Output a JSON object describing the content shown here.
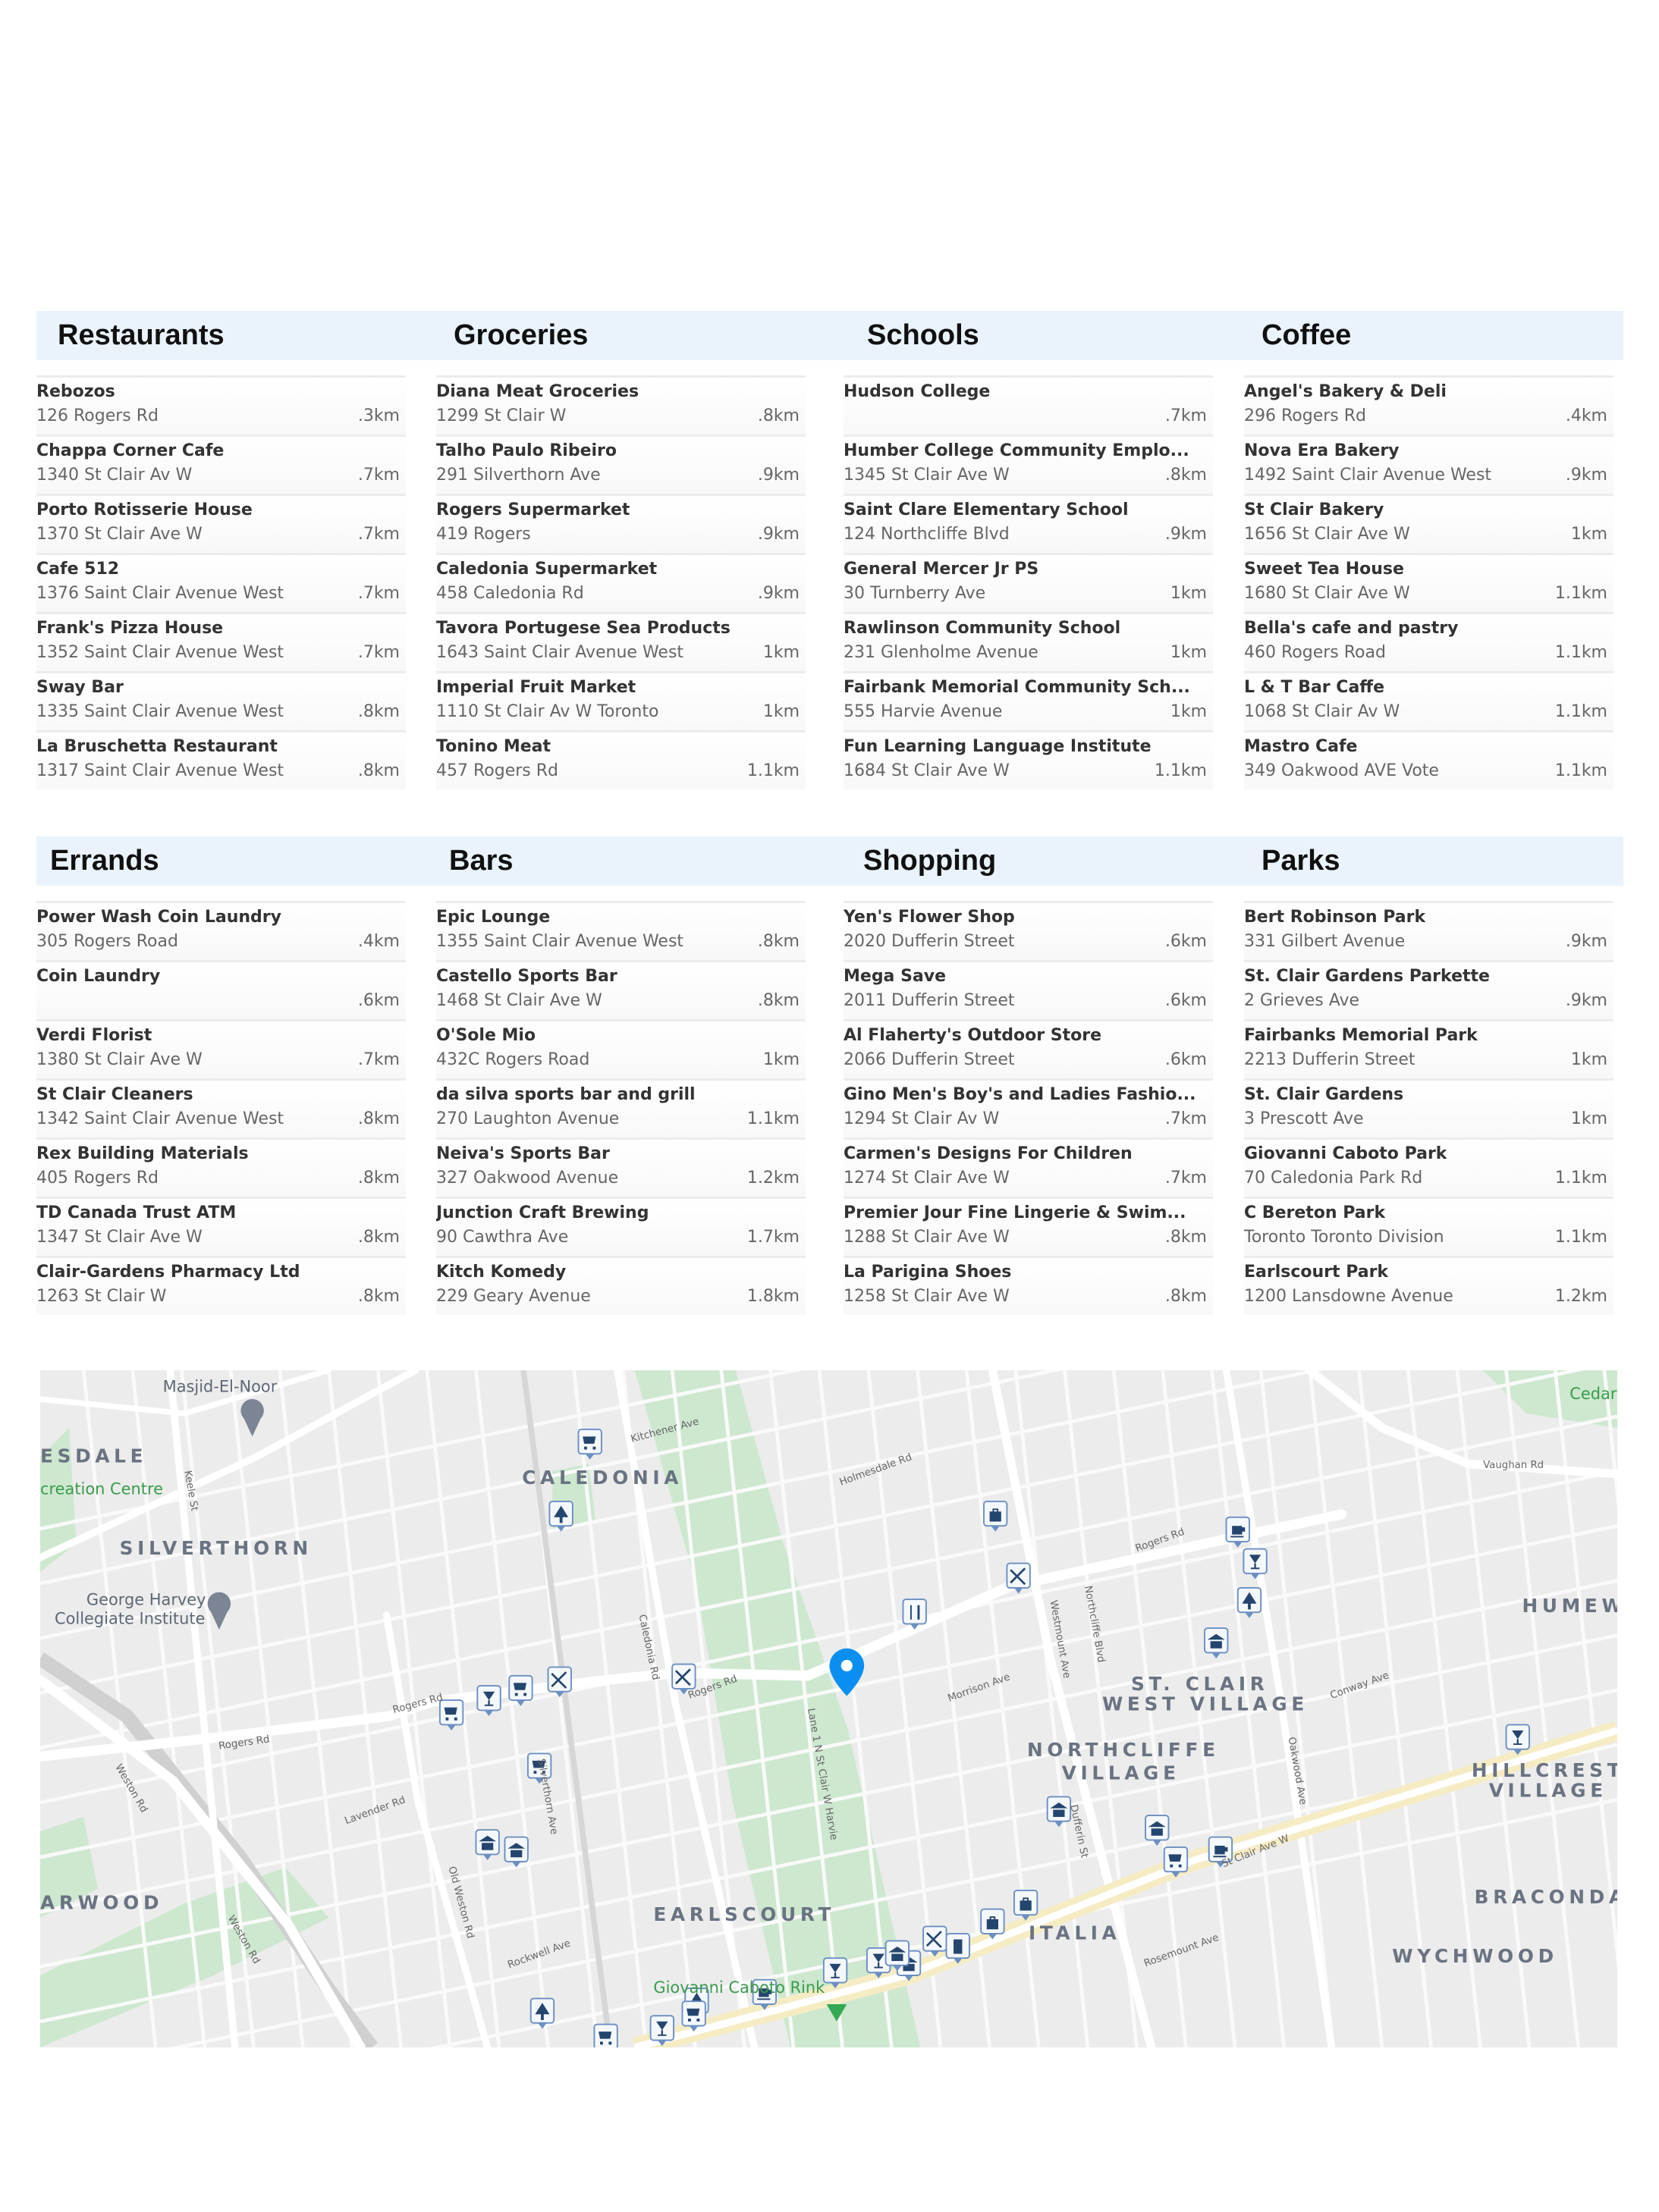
{
  "sections": [
    {
      "categories": [
        {
          "title": "Restaurants",
          "items": [
            {
              "name": "Rebozos",
              "address": "126 Rogers Rd",
              "distance": ".3km"
            },
            {
              "name": "Chappa Corner Cafe",
              "address": "1340 St Clair Av W",
              "distance": ".7km"
            },
            {
              "name": "Porto Rotisserie House",
              "address": "1370 St Clair Ave W",
              "distance": ".7km"
            },
            {
              "name": "Cafe 512",
              "address": "1376 Saint Clair Avenue West",
              "distance": ".7km"
            },
            {
              "name": "Frank's Pizza House",
              "address": "1352 Saint Clair Avenue West",
              "distance": ".7km"
            },
            {
              "name": "Sway Bar",
              "address": "1335 Saint Clair Avenue West",
              "distance": ".8km"
            },
            {
              "name": "La Bruschetta Restaurant",
              "address": "1317 Saint Clair Avenue West",
              "distance": ".8km"
            }
          ]
        },
        {
          "title": "Groceries",
          "items": [
            {
              "name": "Diana Meat Groceries",
              "address": "1299 St Clair W",
              "distance": ".8km"
            },
            {
              "name": "Talho Paulo Ribeiro",
              "address": "291 Silverthorn Ave",
              "distance": ".9km"
            },
            {
              "name": "Rogers Supermarket",
              "address": "419 Rogers",
              "distance": ".9km"
            },
            {
              "name": "Caledonia Supermarket",
              "address": "458 Caledonia Rd",
              "distance": ".9km"
            },
            {
              "name": "Tavora Portugese Sea Products",
              "address": "1643 Saint Clair Avenue West",
              "distance": "1km"
            },
            {
              "name": "Imperial Fruit Market",
              "address": "1110 St Clair Av W Toronto",
              "distance": "1km"
            },
            {
              "name": "Tonino Meat",
              "address": "457 Rogers Rd",
              "distance": "1.1km"
            }
          ]
        },
        {
          "title": "Schools",
          "items": [
            {
              "name": "Hudson College",
              "address": "",
              "distance": ".7km"
            },
            {
              "name": "Humber College Community Emplo...",
              "address": "1345 St Clair Ave W",
              "distance": ".8km"
            },
            {
              "name": "Saint Clare Elementary School",
              "address": "124 Northcliffe Blvd",
              "distance": ".9km"
            },
            {
              "name": "General Mercer Jr PS",
              "address": "30 Turnberry Ave",
              "distance": "1km"
            },
            {
              "name": "Rawlinson Community School",
              "address": "231 Glenholme Avenue",
              "distance": "1km"
            },
            {
              "name": "Fairbank Memorial Community Sch...",
              "address": "555 Harvie Avenue",
              "distance": "1km"
            },
            {
              "name": "Fun Learning Language Institute",
              "address": "1684 St Clair Ave W",
              "distance": "1.1km"
            }
          ]
        },
        {
          "title": "Coffee",
          "items": [
            {
              "name": "Angel's Bakery & Deli",
              "address": "296 Rogers Rd",
              "distance": ".4km"
            },
            {
              "name": "Nova Era Bakery",
              "address": "1492 Saint Clair Avenue West",
              "distance": ".9km"
            },
            {
              "name": "St Clair Bakery",
              "address": "1656 St Clair Ave W",
              "distance": "1km"
            },
            {
              "name": "Sweet Tea House",
              "address": "1680 St Clair Ave W",
              "distance": "1.1km"
            },
            {
              "name": "Bella's cafe and pastry",
              "address": "460 Rogers Road",
              "distance": "1.1km"
            },
            {
              "name": "L & T Bar Caffe",
              "address": "1068 St Clair Av W",
              "distance": "1.1km"
            },
            {
              "name": "Mastro Cafe",
              "address": "349 Oakwood AVE Vote",
              "distance": "1.1km"
            }
          ]
        }
      ]
    },
    {
      "categories": [
        {
          "title": "Errands",
          "items": [
            {
              "name": "Power Wash Coin Laundry",
              "address": "305 Rogers Road",
              "distance": ".4km"
            },
            {
              "name": "Coin Laundry",
              "address": "",
              "distance": ".6km"
            },
            {
              "name": "Verdi Florist",
              "address": "1380 St Clair Ave W",
              "distance": ".7km"
            },
            {
              "name": "St Clair Cleaners",
              "address": "1342 Saint Clair Avenue West",
              "distance": ".8km"
            },
            {
              "name": "Rex Building Materials",
              "address": "405 Rogers Rd",
              "distance": ".8km"
            },
            {
              "name": "TD Canada Trust ATM",
              "address": "1347 St Clair Ave W",
              "distance": ".8km"
            },
            {
              "name": "Clair-Gardens Pharmacy Ltd",
              "address": "1263 St Clair W",
              "distance": ".8km"
            }
          ]
        },
        {
          "title": "Bars",
          "items": [
            {
              "name": "Epic Lounge",
              "address": "1355 Saint Clair Avenue West",
              "distance": ".8km"
            },
            {
              "name": "Castello Sports Bar",
              "address": "1468 St Clair Ave W",
              "distance": ".8km"
            },
            {
              "name": "O'Sole Mio",
              "address": "432C Rogers Road",
              "distance": "1km"
            },
            {
              "name": "da silva sports bar and grill",
              "address": "270 Laughton Avenue",
              "distance": "1.1km"
            },
            {
              "name": "Neiva's Sports Bar",
              "address": "327 Oakwood Avenue",
              "distance": "1.2km"
            },
            {
              "name": "Junction Craft Brewing",
              "address": "90 Cawthra Ave",
              "distance": "1.7km"
            },
            {
              "name": "Kitch Komedy",
              "address": "229 Geary Avenue",
              "distance": "1.8km"
            }
          ]
        },
        {
          "title": "Shopping",
          "items": [
            {
              "name": "Yen's Flower Shop",
              "address": "2020 Dufferin Street",
              "distance": ".6km"
            },
            {
              "name": "Mega Save",
              "address": "2011 Dufferin Street",
              "distance": ".6km"
            },
            {
              "name": "Al Flaherty's Outdoor Store",
              "address": "2066 Dufferin Street",
              "distance": ".6km"
            },
            {
              "name": "Gino Men's Boy's and Ladies Fashio...",
              "address": "1294 St Clair Av W",
              "distance": ".7km"
            },
            {
              "name": "Carmen's Designs For Children",
              "address": "1274 St Clair Ave W",
              "distance": ".7km"
            },
            {
              "name": "Premier Jour Fine Lingerie & Swim...",
              "address": "1288 St Clair Ave W",
              "distance": ".8km"
            },
            {
              "name": "La Parigina Shoes",
              "address": "1258 St Clair Ave W",
              "distance": ".8km"
            }
          ]
        },
        {
          "title": "Parks",
          "items": [
            {
              "name": "Bert Robinson Park",
              "address": "331 Gilbert Avenue",
              "distance": ".9km"
            },
            {
              "name": "St. Clair Gardens Parkette",
              "address": "2 Grieves Ave",
              "distance": ".9km"
            },
            {
              "name": "Fairbanks Memorial Park",
              "address": "2213 Dufferin Street",
              "distance": "1km"
            },
            {
              "name": "St. Clair Gardens",
              "address": "3 Prescott Ave",
              "distance": "1km"
            },
            {
              "name": "Giovanni Caboto Park",
              "address": "70 Caledonia Park Rd",
              "distance": "1.1km"
            },
            {
              "name": "C Bereton Park",
              "address": "Toronto Toronto Division",
              "distance": "1.1km"
            },
            {
              "name": "Earlscourt Park",
              "address": "1200 Lansdowne Avenue",
              "distance": "1.2km"
            }
          ]
        }
      ]
    }
  ],
  "map": {
    "pin_color": "#0a8ff0",
    "marker_color": "#24456e",
    "neighborhoods": {
      "esdale": "ESDALE",
      "silverthorn": "SILVERTHORN",
      "caledonia": "CALEDONIA",
      "earlscourt": "EARLSCOURT",
      "arwood": "ARWOOD",
      "st_clair_west_village_1": "ST. CLAIR",
      "st_clair_west_village_2": "WEST VILLAGE",
      "northcliffe_1": "NORTHCLIFFE",
      "northcliffe_2": "VILLAGE",
      "humewood": "HUMEW",
      "hillcrest_1": "HILLCREST",
      "hillcrest_2": "VILLAGE",
      "bracondale": "BRACONDAI",
      "wychwood": "WYCHWOOD",
      "italia": "ITALIA"
    },
    "places": {
      "masjid": "Masjid-El-Noor",
      "recreation": "creation Centre",
      "george_harvey_1": "George Harvey",
      "george_harvey_2": "Collegiate Institute",
      "rink": "Giovanni Caboto Rink",
      "cedar": "Cedar"
    },
    "streets": {
      "rogers_1": "Rogers Rd",
      "rogers_2": "Rogers Rd",
      "rogers_3": "Rogers Rd",
      "rogers_4": "Rogers Rd",
      "st_clair": "St Clair Ave W",
      "weston_1": "Weston Rd",
      "weston_2": "Weston Rd",
      "old_weston": "Old Weston Rd",
      "keele": "Keele St",
      "caledonia": "Caledonia Rd",
      "dufferin": "Dufferin St",
      "oakwood": "Oakwood Ave",
      "vaughan": "Vaughan Rd",
      "kitchener": "Kitchener Ave",
      "holmesdale": "Holmesdale Rd",
      "northcliffe": "Northcliffe Blvd",
      "westmount": "Westmount Ave",
      "morrison": "Morrison Ave",
      "silverthorn": "Silverthorn Ave",
      "lavender": "Lavender Rd",
      "rockwell": "Rockwell Ave",
      "harvie": "Lane 1 N St Clair W Harvie",
      "conway": "Conway Ave",
      "rosemount": "Rosemount Ave"
    },
    "markers": [
      "cart",
      "tree",
      "bag",
      "coffee",
      "glass",
      "utensils",
      "fork",
      "tree",
      "school",
      "utensils",
      "utensils",
      "cart",
      "glass",
      "cart",
      "cart",
      "school",
      "school",
      "school",
      "school",
      "cart",
      "coffee",
      "glass",
      "bag",
      "bag",
      "utensils",
      "money",
      "school",
      "glass",
      "glass",
      "school",
      "coffee",
      "tree",
      "tree",
      "cart",
      "glass",
      "cart"
    ]
  }
}
